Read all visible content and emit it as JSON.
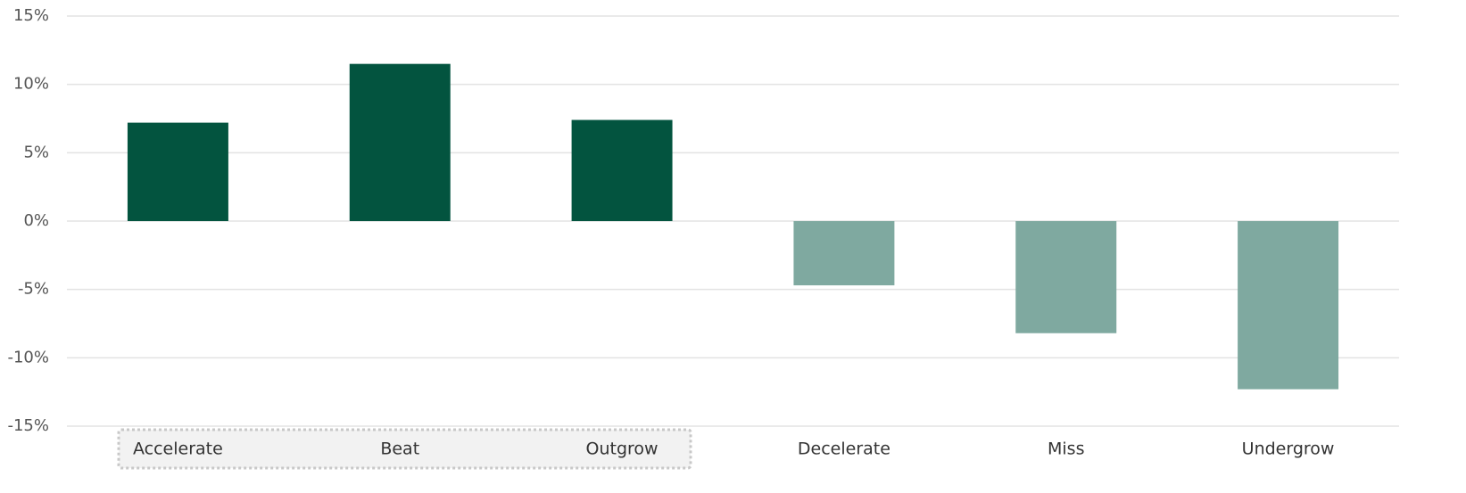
{
  "chart_data": {
    "type": "bar",
    "categories": [
      "Accelerate",
      "Beat",
      "Outgrow",
      "Decelerate",
      "Miss",
      "Undergrow"
    ],
    "values": [
      7.2,
      11.5,
      7.4,
      -4.7,
      -8.2,
      -12.3
    ],
    "colors": [
      "#03543f",
      "#03543f",
      "#03543f",
      "#7fa9a0",
      "#7fa9a0",
      "#7fa9a0"
    ],
    "ylim": [
      -15,
      15
    ],
    "yticks": [
      {
        "value": -15,
        "label": "-15%"
      },
      {
        "value": -10,
        "label": "-10%"
      },
      {
        "value": -5,
        "label": "-5%"
      },
      {
        "value": 0,
        "label": "0%"
      },
      {
        "value": 5,
        "label": "5%"
      },
      {
        "value": 10,
        "label": "10%"
      },
      {
        "value": 15,
        "label": "15%"
      }
    ],
    "grid": true
  }
}
